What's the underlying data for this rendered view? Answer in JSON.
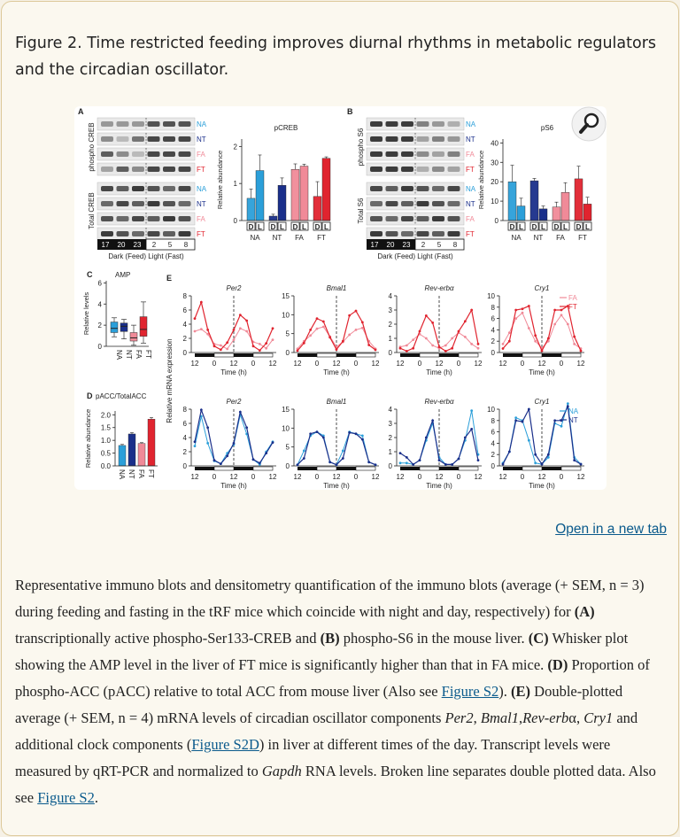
{
  "figure_title": "Figure 2. Time restricted feeding improves diurnal rhythms in metabolic regulators and the circadian oscillator.",
  "open_link": "Open in a new tab",
  "description": {
    "p1": "Representative immuno blots and densitometry quantification of the immuno blots (average (+ SEM, n = 3) during feeding and fasting in the tRF mice which coincide with night and day, respectively) for ",
    "a_label": "(A)",
    "a_text": " transcriptionally active phospho-Ser133-CREB and ",
    "b_label": "(B)",
    "b_text": " phospho-S6 in the mouse liver. ",
    "c_label": "(C)",
    "c_text": " Whisker plot showing the AMP level in the liver of FT mice is significantly higher than that in FA mice. ",
    "d_label": "(D)",
    "d_text": " Proportion of phospho-ACC (pACC) relative to total ACC from mouse liver (Also see ",
    "link_s2": "Figure S2",
    "d_text2": "). ",
    "e_label": "(E)",
    "e_text": " Double-plotted average (+ SEM, n = 4) mRNA levels of circadian oscillator components ",
    "gene1": "Per2",
    "sep1": ", ",
    "gene2": "Bmal1",
    "sep2": ",",
    "gene3": "Rev-erb",
    "alpha": "α",
    "sep3": ", ",
    "gene4": "Cry1",
    "e_text2": " and additional clock components (",
    "link_s2d": "Figure S2D",
    "e_text3": ") in liver at different times of the day. Transcript levels were measured by qRT-PCR and normalized to ",
    "gapdh": "Gapdh",
    "e_text4": " RNA levels. Broken line separates double plotted data. Also see ",
    "link_s2b": "Figure S2",
    "end": "."
  },
  "colors": {
    "NA": "#2b9fd9",
    "NT": "#1a2f8a",
    "FA": "#f08a98",
    "FT": "#e0242f"
  },
  "panels": {
    "A": {
      "letter": "A",
      "blot_top_label": "phospho CREB",
      "blot_bottom_label": "Total CREB",
      "row_labels": [
        "NA",
        "NT",
        "FA",
        "FT"
      ],
      "time_dark": [
        "17",
        "20",
        "23"
      ],
      "time_light": [
        "2",
        "5",
        "8"
      ],
      "axis_caption": "Dark (Feed)  Light (Fast)"
    },
    "B": {
      "letter": "B",
      "blot_top_label": "phospho S6",
      "blot_bottom_label": "Total S6",
      "row_labels": [
        "NA",
        "NT",
        "FA",
        "FT"
      ],
      "time_dark": [
        "17",
        "20",
        "23"
      ],
      "time_light": [
        "2",
        "5",
        "8"
      ],
      "axis_caption": "Dark (Feed)  Light (Fast)"
    },
    "C": {
      "letter": "C"
    },
    "D": {
      "letter": "D"
    },
    "E": {
      "letter": "E",
      "ylabel": "Relative mRNA expression",
      "xlabel": "Time (h)"
    }
  },
  "chart_data": [
    {
      "panel": "A",
      "type": "bar",
      "title": "pCREB",
      "ylabel": "Relative abundance",
      "groups": [
        "NA",
        "NT",
        "FA",
        "FT"
      ],
      "sub": [
        "D",
        "L"
      ],
      "yticks": [
        0,
        1,
        2
      ],
      "ylim": [
        0,
        2.2
      ],
      "values": [
        [
          0.6,
          1.35
        ],
        [
          0.12,
          0.95
        ],
        [
          1.38,
          1.47
        ],
        [
          0.65,
          1.68
        ]
      ],
      "errors": [
        [
          0.25,
          0.42
        ],
        [
          0.05,
          0.2
        ],
        [
          0.15,
          0.05
        ],
        [
          0.4,
          0.04
        ]
      ]
    },
    {
      "panel": "B",
      "type": "bar",
      "title": "pS6",
      "ylabel": "Relative abundance",
      "groups": [
        "NA",
        "NT",
        "FA",
        "FT"
      ],
      "sub": [
        "D",
        "L"
      ],
      "yticks": [
        0,
        10,
        20,
        30,
        40
      ],
      "ylim": [
        0,
        42
      ],
      "values": [
        [
          20,
          7.5
        ],
        [
          20.5,
          6
        ],
        [
          7,
          14.5
        ],
        [
          21.5,
          8.5
        ]
      ],
      "errors": [
        [
          8.5,
          4
        ],
        [
          1.2,
          1.5
        ],
        [
          2.5,
          5
        ],
        [
          6.5,
          3.5
        ]
      ]
    },
    {
      "panel": "C",
      "type": "box",
      "title": "AMP",
      "ylabel": "Relative levels",
      "groups": [
        "NA",
        "NT",
        "FA",
        "FT"
      ],
      "yticks": [
        0,
        2,
        4,
        6
      ],
      "ylim": [
        0,
        6.2
      ],
      "boxes": [
        {
          "min": 0.9,
          "q1": 1.3,
          "median": 1.7,
          "q3": 2.3,
          "max": 2.7
        },
        {
          "min": 0.7,
          "q1": 1.4,
          "median": 1.9,
          "q3": 2.2,
          "max": 2.55
        },
        {
          "min": 0.1,
          "q1": 0.5,
          "median": 0.8,
          "q3": 1.3,
          "max": 2.0
        },
        {
          "min": 0.3,
          "q1": 0.95,
          "median": 1.6,
          "q3": 2.8,
          "max": 4.2
        }
      ]
    },
    {
      "panel": "D",
      "type": "bar",
      "title": "pACC/TotalACC",
      "ylabel": "Relative abundance",
      "groups": [
        "NA",
        "NT",
        "FA",
        "FT"
      ],
      "yticks": [
        0,
        0.5,
        1.0,
        1.5,
        2.0
      ],
      "ylim": [
        0,
        2.15
      ],
      "values": [
        0.8,
        1.25,
        0.88,
        1.83
      ],
      "errors": [
        0.04,
        0.05,
        0.03,
        0.06
      ]
    },
    {
      "panel": "E",
      "type": "line",
      "xlabel": "Time (h)",
      "x": [
        12,
        16,
        20,
        24,
        4,
        8,
        12,
        16,
        20,
        24,
        4,
        8,
        12
      ],
      "xticks": [
        "12",
        "0",
        "12",
        "0",
        "12"
      ],
      "genes": [
        {
          "name": "Per2",
          "yticks": [
            0,
            2,
            4,
            6,
            8
          ],
          "ymax": 8,
          "FA": [
            3.0,
            3.3,
            2.6,
            1.2,
            1.0,
            0.5,
            1.8,
            3.4,
            3.0,
            1.5,
            1.2,
            0.6,
            1.8
          ],
          "FT": [
            4.8,
            7.1,
            3.2,
            0.9,
            0.4,
            1.4,
            3.2,
            5.3,
            4.5,
            0.9,
            0.3,
            1.3,
            3.4
          ],
          "NA": [
            2.8,
            7.0,
            3.2,
            0.7,
            0.3,
            1.8,
            3.0,
            7.2,
            4.5,
            0.9,
            0.2,
            2.0,
            3.4
          ],
          "NT": [
            3.4,
            7.9,
            5.4,
            0.8,
            0.3,
            1.4,
            3.2,
            7.6,
            5.4,
            0.9,
            0.4,
            1.8,
            3.3
          ]
        },
        {
          "name": "Bmal1",
          "yticks": [
            0,
            5,
            10,
            15
          ],
          "ymax": 15,
          "FA": [
            1.0,
            3.0,
            4.5,
            6.3,
            6.8,
            4.2,
            1.5,
            2.8,
            4.7,
            6.0,
            6.5,
            3.0,
            1.0
          ],
          "FT": [
            0.5,
            2.5,
            6.0,
            9.0,
            8.2,
            4.0,
            0.8,
            3.0,
            9.8,
            11.0,
            8.0,
            2.0,
            0.7
          ],
          "NA": [
            0.3,
            4.0,
            8.0,
            9.0,
            8.0,
            1.0,
            0.3,
            4.0,
            9.0,
            8.5,
            8.0,
            1.0,
            0.3
          ],
          "NT": [
            0.3,
            2.0,
            8.5,
            9.0,
            7.5,
            1.0,
            0.3,
            2.0,
            8.8,
            8.5,
            7.0,
            1.0,
            0.3
          ]
        },
        {
          "name": "Rev-erbα",
          "yticks": [
            0,
            1,
            2,
            3,
            4
          ],
          "ymax": 4,
          "FA": [
            0.4,
            0.5,
            0.9,
            1.3,
            1.0,
            0.5,
            0.3,
            0.5,
            1.0,
            1.4,
            1.1,
            0.6,
            0.3
          ],
          "FT": [
            0.3,
            0.1,
            0.3,
            1.5,
            2.6,
            2.1,
            0.4,
            0.1,
            0.3,
            1.5,
            2.2,
            3.0,
            0.6
          ],
          "NA": [
            0.2,
            0.2,
            0.1,
            0.4,
            1.8,
            3.0,
            0.6,
            0.1,
            0.1,
            0.5,
            1.8,
            3.9,
            0.8
          ],
          "NT": [
            0.9,
            0.6,
            0.1,
            0.4,
            2.0,
            3.2,
            0.4,
            0.1,
            0.1,
            0.5,
            2.0,
            2.6,
            0.4
          ]
        },
        {
          "name": "Cry1",
          "yticks": [
            0,
            2,
            4,
            6,
            8,
            10
          ],
          "ymax": 10,
          "FA": [
            1.5,
            3.5,
            6.0,
            7.0,
            4.3,
            2.0,
            0.8,
            2.0,
            5.0,
            6.6,
            5.0,
            1.5,
            0.7
          ],
          "FT": [
            0.7,
            2.0,
            7.5,
            7.7,
            8.2,
            3.0,
            0.3,
            2.5,
            7.5,
            7.5,
            8.2,
            2.8,
            0.3
          ],
          "NA": [
            0.5,
            2.5,
            8.5,
            8.0,
            4.5,
            0.5,
            0.3,
            1.5,
            7.5,
            7.0,
            11.0,
            1.5,
            0.3
          ],
          "NT": [
            0.3,
            2.5,
            8.0,
            7.8,
            10.0,
            2.0,
            0.3,
            2.0,
            8.0,
            8.0,
            10.5,
            1.0,
            0.3
          ]
        }
      ]
    }
  ]
}
